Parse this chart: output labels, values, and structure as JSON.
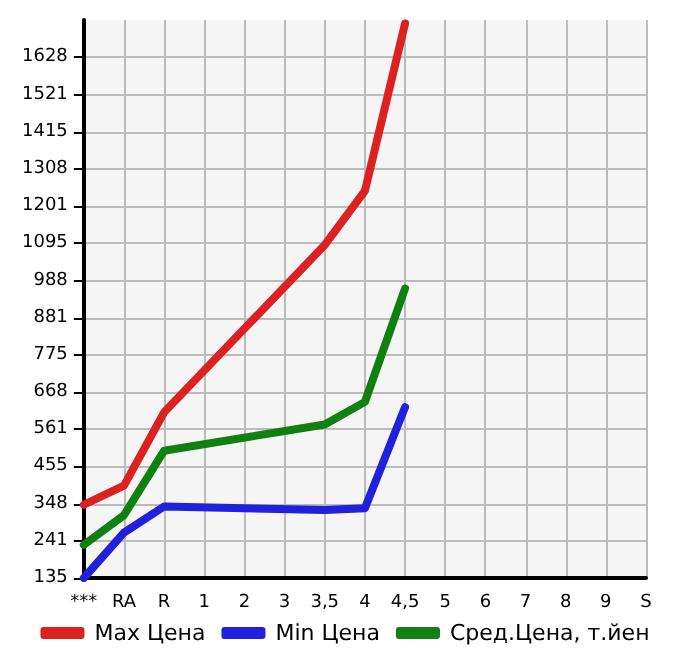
{
  "chart_data": {
    "type": "line",
    "categories": [
      "***",
      "RA",
      "R",
      "1",
      "2",
      "3",
      "3,5",
      "4",
      "4,5",
      "5",
      "6",
      "7",
      "8",
      "9",
      "S"
    ],
    "series": [
      {
        "name": "Max Цена",
        "color": "#dd2020",
        "values": [
          345,
          400,
          610,
          null,
          null,
          null,
          1090,
          1245,
          1725,
          null,
          null,
          null,
          null,
          null,
          null
        ]
      },
      {
        "name": "Min Цена",
        "color": "#2020dd",
        "values": [
          135,
          265,
          340,
          null,
          null,
          null,
          330,
          335,
          625,
          null,
          null,
          null,
          null,
          null,
          null
        ]
      },
      {
        "name": "Сред.Цена, т.йен",
        "color": "#108010",
        "values": [
          230,
          315,
          500,
          null,
          null,
          null,
          575,
          640,
          965,
          null,
          null,
          null,
          null,
          null,
          null
        ]
      }
    ],
    "ylim": [
      135,
      1735
    ],
    "yticks": [
      135,
      241,
      348,
      455,
      561,
      668,
      775,
      881,
      988,
      1095,
      1201,
      1308,
      1415,
      1521,
      1628
    ],
    "grid": true,
    "legend": "bottom",
    "marker": "none",
    "line_style": "solid"
  }
}
